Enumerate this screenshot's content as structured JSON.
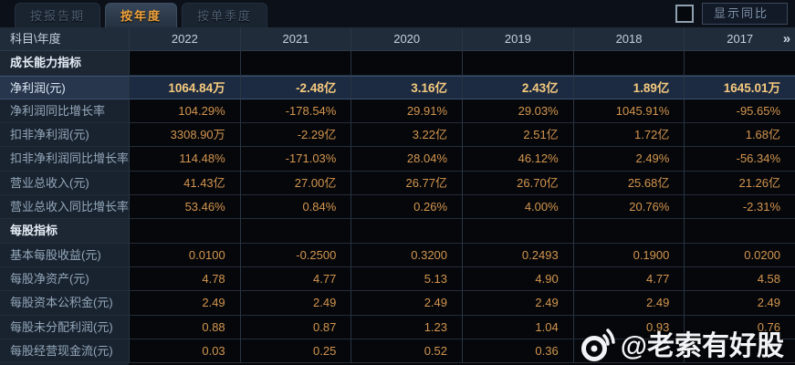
{
  "tabs": [
    {
      "label": "按报告期",
      "active": false
    },
    {
      "label": "按年度",
      "active": true
    },
    {
      "label": "按单季度",
      "active": false
    }
  ],
  "controls": {
    "show_yoy_label": "显示同比",
    "checkbox_checked": false
  },
  "table": {
    "corner_label": "科目\\年度",
    "years": [
      "2022",
      "2021",
      "2020",
      "2019",
      "2018",
      "2017"
    ],
    "more_years_glyph": "»",
    "rows": [
      {
        "type": "section",
        "label": "成长能力指标",
        "values": [
          "",
          "",
          "",
          "",
          "",
          ""
        ]
      },
      {
        "type": "data",
        "highlight": true,
        "label": "净利润(元)",
        "values": [
          "1064.84万",
          "-2.48亿",
          "3.16亿",
          "2.43亿",
          "1.89亿",
          "1645.01万"
        ]
      },
      {
        "type": "data",
        "label": "净利润同比增长率",
        "values": [
          "104.29%",
          "-178.54%",
          "29.91%",
          "29.03%",
          "1045.91%",
          "-95.65%"
        ]
      },
      {
        "type": "data",
        "label": "扣非净利润(元)",
        "values": [
          "3308.90万",
          "-2.29亿",
          "3.22亿",
          "2.51亿",
          "1.72亿",
          "1.68亿"
        ]
      },
      {
        "type": "data",
        "label": "扣非净利润同比增长率",
        "values": [
          "114.48%",
          "-171.03%",
          "28.04%",
          "46.12%",
          "2.49%",
          "-56.34%"
        ]
      },
      {
        "type": "data",
        "label": "营业总收入(元)",
        "values": [
          "41.43亿",
          "27.00亿",
          "26.77亿",
          "26.70亿",
          "25.68亿",
          "21.26亿"
        ]
      },
      {
        "type": "data",
        "label": "营业总收入同比增长率",
        "values": [
          "53.46%",
          "0.84%",
          "0.26%",
          "4.00%",
          "20.76%",
          "-2.31%"
        ]
      },
      {
        "type": "section",
        "label": "每股指标",
        "values": [
          "",
          "",
          "",
          "",
          "",
          ""
        ]
      },
      {
        "type": "data",
        "label": "基本每股收益(元)",
        "values": [
          "0.0100",
          "-0.2500",
          "0.3200",
          "0.2493",
          "0.1900",
          "0.0200"
        ]
      },
      {
        "type": "data",
        "label": "每股净资产(元)",
        "values": [
          "4.78",
          "4.77",
          "5.13",
          "4.90",
          "4.77",
          "4.58"
        ]
      },
      {
        "type": "data",
        "label": "每股资本公积金(元)",
        "values": [
          "2.49",
          "2.49",
          "2.49",
          "2.49",
          "2.49",
          "2.49"
        ]
      },
      {
        "type": "data",
        "label": "每股未分配利润(元)",
        "values": [
          "0.88",
          "0.87",
          "1.23",
          "1.04",
          "0.93",
          "0.76"
        ]
      },
      {
        "type": "data",
        "label": "每股经营现金流(元)",
        "values": [
          "0.03",
          "0.25",
          "0.52",
          "0.36",
          "",
          ""
        ]
      }
    ]
  },
  "watermark": {
    "text": "@老索有好股"
  },
  "colors": {
    "accent_tab_text": "#efa43d",
    "value_orange": "#d4954f",
    "highlight_gold": "#f6ca7e",
    "highlight_row_bg": "#1c2b42",
    "header_bg": "#202c3a",
    "label_col_bg": "#19232f",
    "data_cell_bg": "#05070a"
  }
}
